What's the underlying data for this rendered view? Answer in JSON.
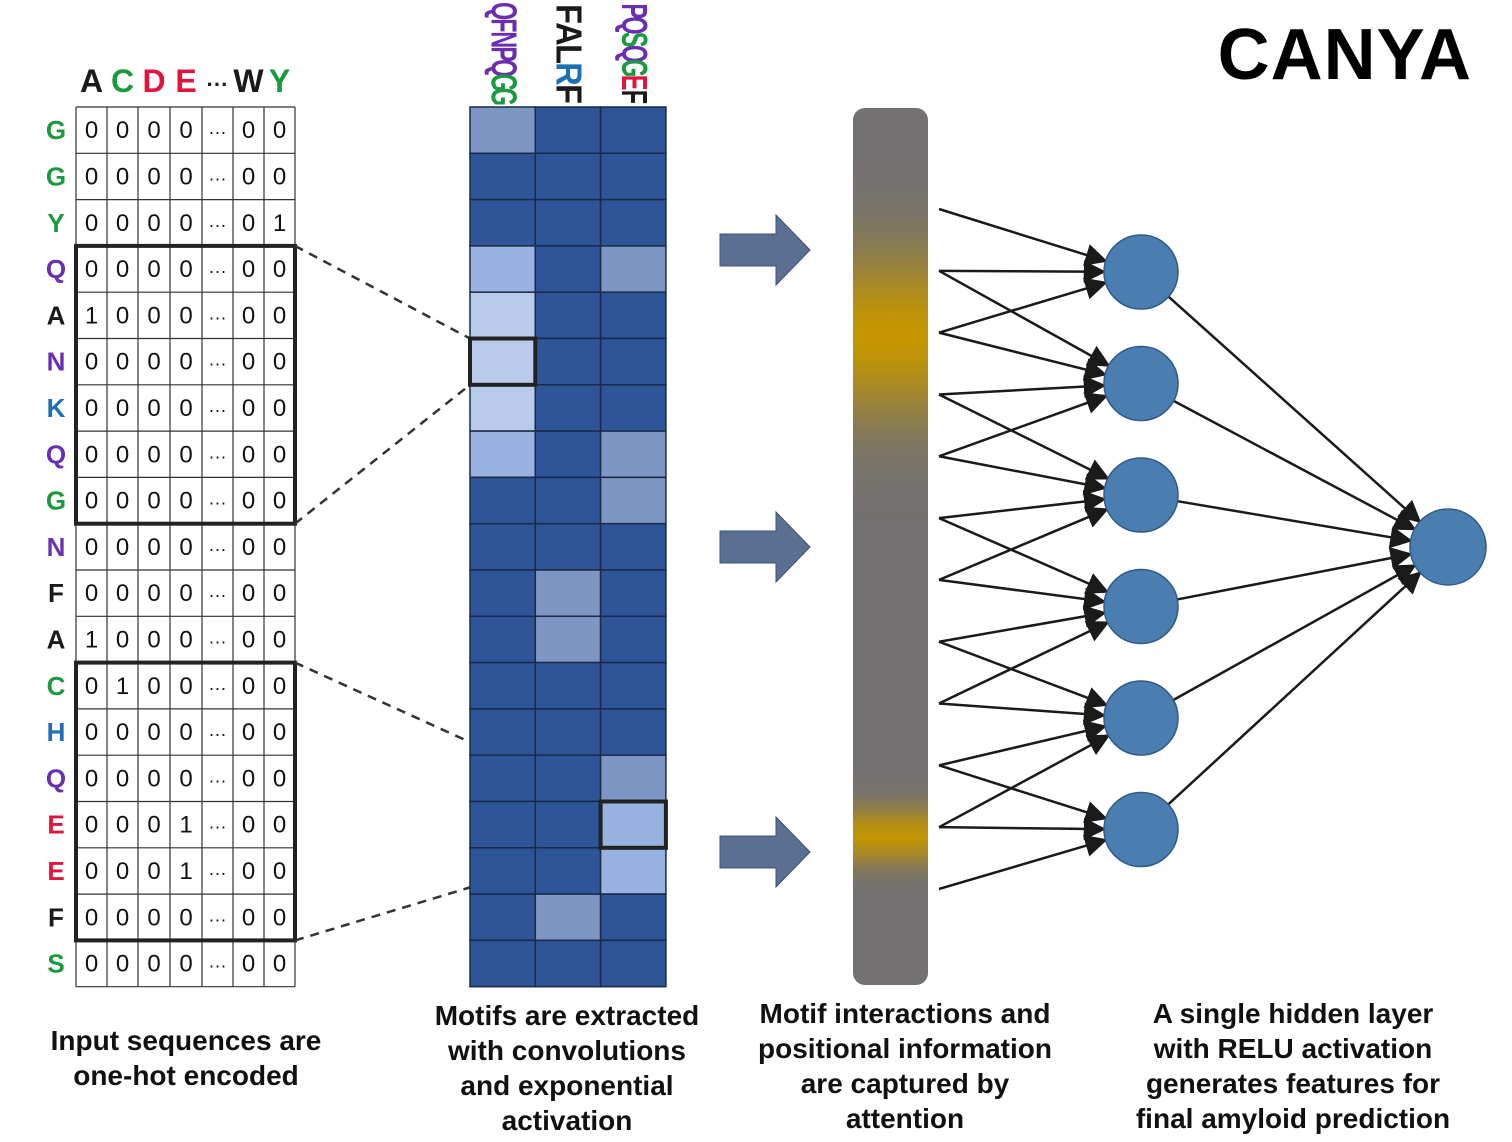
{
  "title": "CANYA",
  "colors": {
    "green": "#1a9a3e",
    "purple": "#6a2fb0",
    "blue": "#1f6fb5",
    "red": "#e0143c",
    "black": "#1a1a1a",
    "heat_dark": "#2e5597",
    "heat_mid": "#7d96c4",
    "heat_light": "#98b3e2",
    "heat_pale": "#b9cbea",
    "arrow": "#5b6f92",
    "attention_gray": "#737171",
    "attention_gold": "#c49600",
    "node": "#4a7db0"
  },
  "onehot": {
    "header": [
      {
        "text": "A",
        "color": "black"
      },
      {
        "text": "C",
        "color": "green"
      },
      {
        "text": "D",
        "color": "red"
      },
      {
        "text": "E",
        "color": "red"
      },
      {
        "text": "···",
        "color": "black"
      },
      {
        "text": "W",
        "color": "black"
      },
      {
        "text": "Y",
        "color": "green"
      }
    ],
    "rows": [
      {
        "aa": "G",
        "color": "green",
        "values": [
          "0",
          "0",
          "0",
          "0",
          "···",
          "0",
          "0"
        ]
      },
      {
        "aa": "G",
        "color": "green",
        "values": [
          "0",
          "0",
          "0",
          "0",
          "···",
          "0",
          "0"
        ]
      },
      {
        "aa": "Y",
        "color": "green",
        "values": [
          "0",
          "0",
          "0",
          "0",
          "···",
          "0",
          "1"
        ]
      },
      {
        "aa": "Q",
        "color": "purple",
        "values": [
          "0",
          "0",
          "0",
          "0",
          "···",
          "0",
          "0"
        ]
      },
      {
        "aa": "A",
        "color": "black",
        "values": [
          "1",
          "0",
          "0",
          "0",
          "···",
          "0",
          "0"
        ]
      },
      {
        "aa": "N",
        "color": "purple",
        "values": [
          "0",
          "0",
          "0",
          "0",
          "···",
          "0",
          "0"
        ]
      },
      {
        "aa": "K",
        "color": "blue",
        "values": [
          "0",
          "0",
          "0",
          "0",
          "···",
          "0",
          "0"
        ]
      },
      {
        "aa": "Q",
        "color": "purple",
        "values": [
          "0",
          "0",
          "0",
          "0",
          "···",
          "0",
          "0"
        ]
      },
      {
        "aa": "G",
        "color": "green",
        "values": [
          "0",
          "0",
          "0",
          "0",
          "···",
          "0",
          "0"
        ]
      },
      {
        "aa": "N",
        "color": "purple",
        "values": [
          "0",
          "0",
          "0",
          "0",
          "···",
          "0",
          "0"
        ]
      },
      {
        "aa": "F",
        "color": "black",
        "values": [
          "0",
          "0",
          "0",
          "0",
          "···",
          "0",
          "0"
        ]
      },
      {
        "aa": "A",
        "color": "black",
        "values": [
          "1",
          "0",
          "0",
          "0",
          "···",
          "0",
          "0"
        ]
      },
      {
        "aa": "C",
        "color": "green",
        "values": [
          "0",
          "1",
          "0",
          "0",
          "···",
          "0",
          "0"
        ]
      },
      {
        "aa": "H",
        "color": "blue",
        "values": [
          "0",
          "0",
          "0",
          "0",
          "···",
          "0",
          "0"
        ]
      },
      {
        "aa": "Q",
        "color": "purple",
        "values": [
          "0",
          "0",
          "0",
          "0",
          "···",
          "0",
          "0"
        ]
      },
      {
        "aa": "E",
        "color": "red",
        "values": [
          "0",
          "0",
          "0",
          "1",
          "···",
          "0",
          "0"
        ]
      },
      {
        "aa": "E",
        "color": "red",
        "values": [
          "0",
          "0",
          "0",
          "1",
          "···",
          "0",
          "0"
        ]
      },
      {
        "aa": "F",
        "color": "black",
        "values": [
          "0",
          "0",
          "0",
          "0",
          "···",
          "0",
          "0"
        ]
      },
      {
        "aa": "S",
        "color": "green",
        "values": [
          "0",
          "0",
          "0",
          "0",
          "···",
          "0",
          "0"
        ]
      }
    ],
    "windows": [
      {
        "first_row": 3,
        "last_row": 8
      },
      {
        "first_row": 12,
        "last_row": 17
      }
    ]
  },
  "motif_logos": [
    {
      "letters": [
        {
          "text": "Q",
          "color": "purple"
        },
        {
          "text": "F",
          "color": "purple"
        },
        {
          "text": "N",
          "color": "purple"
        },
        {
          "text": "P",
          "color": "purple"
        },
        {
          "text": "Q",
          "color": "purple"
        },
        {
          "text": "G",
          "color": "green"
        },
        {
          "text": "G",
          "color": "green"
        }
      ]
    },
    {
      "letters": [
        {
          "text": "F",
          "color": "black"
        },
        {
          "text": "A",
          "color": "black"
        },
        {
          "text": "L",
          "color": "black"
        },
        {
          "text": "R",
          "color": "blue"
        },
        {
          "text": "F",
          "color": "black"
        }
      ]
    },
    {
      "letters": [
        {
          "text": "P",
          "color": "purple"
        },
        {
          "text": "Q",
          "color": "purple"
        },
        {
          "text": "S",
          "color": "green"
        },
        {
          "text": "Q",
          "color": "purple"
        },
        {
          "text": "G",
          "color": "green"
        },
        {
          "text": "E",
          "color": "red"
        },
        {
          "text": "F",
          "color": "black"
        }
      ]
    }
  ],
  "activation_map": {
    "levels": [
      [
        "mid",
        "dark",
        "dark"
      ],
      [
        "dark",
        "dark",
        "dark"
      ],
      [
        "dark",
        "dark",
        "dark"
      ],
      [
        "light",
        "dark",
        "mid"
      ],
      [
        "pale",
        "dark",
        "dark"
      ],
      [
        "pale",
        "dark",
        "dark"
      ],
      [
        "pale",
        "dark",
        "dark"
      ],
      [
        "light",
        "dark",
        "mid"
      ],
      [
        "dark",
        "dark",
        "mid"
      ],
      [
        "dark",
        "dark",
        "dark"
      ],
      [
        "dark",
        "mid",
        "dark"
      ],
      [
        "dark",
        "mid",
        "dark"
      ],
      [
        "dark",
        "dark",
        "dark"
      ],
      [
        "dark",
        "dark",
        "dark"
      ],
      [
        "dark",
        "dark",
        "mid"
      ],
      [
        "dark",
        "dark",
        "light"
      ],
      [
        "dark",
        "dark",
        "light"
      ],
      [
        "dark",
        "mid",
        "dark"
      ],
      [
        "dark",
        "dark",
        "dark"
      ]
    ],
    "highlighted_cells": [
      {
        "row": 5,
        "col": 0,
        "from_window": 0
      },
      {
        "row": 15,
        "col": 2,
        "from_window": 1
      }
    ]
  },
  "attention": {
    "highlight_bands": [
      {
        "center": 0.26,
        "spread": 0.09
      },
      {
        "center": 0.83,
        "spread": 0.03
      }
    ]
  },
  "network": {
    "input_lines": 12,
    "hidden_nodes": 6,
    "output_nodes": 1
  },
  "captions": {
    "input": "Input sequences are\none-hot encoded",
    "conv": "Motifs are extracted\nwith convolutions\nand exponential\nactivation",
    "attention": "Motif  interactions and\npositional information\nare captured by\nattention",
    "dense": "A single hidden layer\nwith RELU activation\ngenerates features for\nfinal amyloid prediction"
  }
}
